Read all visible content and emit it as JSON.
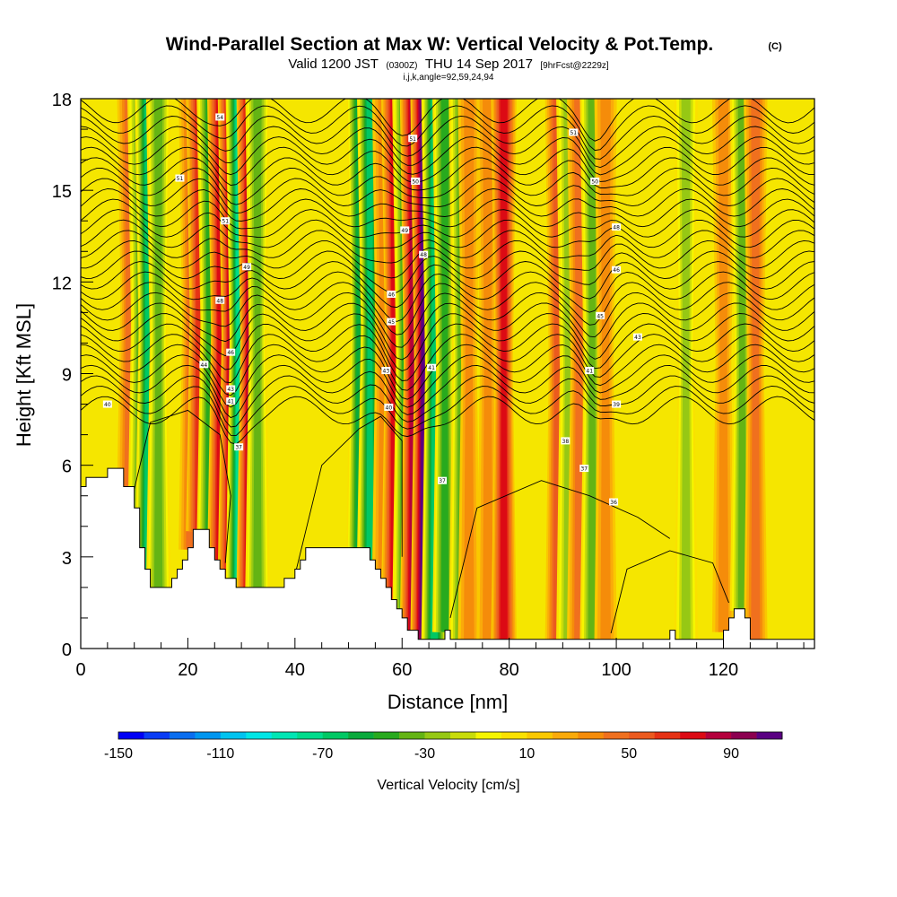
{
  "header": {
    "title": "Wind-Parallel Section at Max W: Vertical Velocity & Pot.Temp.",
    "title_mark": "(C)",
    "valid_prefix": "Valid 1200 JST",
    "valid_zulu": "(0300Z)",
    "valid_date": "THU 14 Sep 2017",
    "forecast": "[9hrFcst@2229z]",
    "ijk": "i,j,k,angle=92,59,24,94"
  },
  "chart_data": {
    "type": "heatmap",
    "xlabel": "Distance [nm]",
    "ylabel": "Height [Kft MSL]",
    "xlim": [
      0,
      137
    ],
    "ylim": [
      0,
      18
    ],
    "x_ticks": [
      "0",
      "20",
      "40",
      "60",
      "80",
      "100",
      "120"
    ],
    "y_ticks": [
      "0",
      "3",
      "6",
      "9",
      "12",
      "15",
      "18"
    ],
    "grid": false,
    "colorbar": {
      "label": "Vertical Velocity [cm/s]",
      "tick_labels": [
        "-150",
        "-110",
        "-70",
        "-30",
        "10",
        "50",
        "90"
      ],
      "range": [
        -150,
        110
      ],
      "step": 10,
      "colors": [
        "#0000f5",
        "#0a3cf5",
        "#0a6ef0",
        "#0096f0",
        "#00c3f0",
        "#00e6e6",
        "#00e6b4",
        "#00dc8c",
        "#00c864",
        "#0aaa3c",
        "#28aa1e",
        "#64b414",
        "#96c814",
        "#c8dc0a",
        "#f5f500",
        "#fae100",
        "#fac800",
        "#faaa0a",
        "#f58c0a",
        "#f0701e",
        "#eb5a1e",
        "#e63214",
        "#dc0a14",
        "#b4003c",
        "#8c0050",
        "#5a0082"
      ]
    },
    "updraft_columns": [
      {
        "x": 9,
        "peak": 55
      },
      {
        "x": 11,
        "peak": -45
      },
      {
        "x": 12.5,
        "peak": -70
      },
      {
        "x": 14.5,
        "peak": -40
      },
      {
        "x": 20.5,
        "peak": 50
      },
      {
        "x": 22,
        "peak": 70
      },
      {
        "x": 24,
        "peak": -50
      },
      {
        "x": 26,
        "peak": 85
      },
      {
        "x": 28,
        "peak": 95
      },
      {
        "x": 29.5,
        "peak": -80
      },
      {
        "x": 31.5,
        "peak": 90
      },
      {
        "x": 33,
        "peak": -40
      },
      {
        "x": 52,
        "peak": -60
      },
      {
        "x": 54,
        "peak": -70
      },
      {
        "x": 56.5,
        "peak": 45
      },
      {
        "x": 58.5,
        "peak": 85
      },
      {
        "x": 60.5,
        "peak": -50
      },
      {
        "x": 62,
        "peak": 95
      },
      {
        "x": 64,
        "peak": 110
      },
      {
        "x": 66,
        "peak": -75
      },
      {
        "x": 68,
        "peak": -50
      },
      {
        "x": 71,
        "peak": -40
      },
      {
        "x": 72.5,
        "peak": 40
      },
      {
        "x": 76,
        "peak": 40
      },
      {
        "x": 79,
        "peak": 80
      },
      {
        "x": 89,
        "peak": 60
      },
      {
        "x": 91,
        "peak": -35
      },
      {
        "x": 93,
        "peak": 50
      },
      {
        "x": 95.5,
        "peak": -45
      },
      {
        "x": 98,
        "peak": 40
      },
      {
        "x": 113,
        "peak": -30
      },
      {
        "x": 120,
        "peak": 40
      },
      {
        "x": 123.5,
        "peak": -45
      },
      {
        "x": 126,
        "peak": 50
      }
    ],
    "terrain": [
      [
        0,
        5.3
      ],
      [
        1,
        5.3
      ],
      [
        1,
        5.6
      ],
      [
        5,
        5.6
      ],
      [
        5,
        5.9
      ],
      [
        8,
        5.9
      ],
      [
        8,
        5.3
      ],
      [
        10,
        5.3
      ],
      [
        10,
        4.6
      ],
      [
        11,
        4.6
      ],
      [
        11,
        3.3
      ],
      [
        12,
        3.3
      ],
      [
        12,
        2.6
      ],
      [
        13,
        2.6
      ],
      [
        13,
        2.0
      ],
      [
        17,
        2.0
      ],
      [
        17,
        2.3
      ],
      [
        18,
        2.3
      ],
      [
        18,
        2.6
      ],
      [
        19,
        2.6
      ],
      [
        19,
        2.9
      ],
      [
        20,
        2.9
      ],
      [
        20,
        3.3
      ],
      [
        21,
        3.3
      ],
      [
        21,
        3.9
      ],
      [
        24,
        3.9
      ],
      [
        24,
        3.3
      ],
      [
        25,
        3.3
      ],
      [
        25,
        2.9
      ],
      [
        26,
        2.9
      ],
      [
        26,
        2.6
      ],
      [
        27,
        2.6
      ],
      [
        27,
        2.3
      ],
      [
        29,
        2.3
      ],
      [
        29,
        2.0
      ],
      [
        38,
        2.0
      ],
      [
        38,
        2.3
      ],
      [
        40,
        2.3
      ],
      [
        40,
        2.6
      ],
      [
        41,
        2.6
      ],
      [
        41,
        2.9
      ],
      [
        42,
        2.9
      ],
      [
        42,
        3.3
      ],
      [
        54,
        3.3
      ],
      [
        54,
        2.9
      ],
      [
        55,
        2.9
      ],
      [
        55,
        2.6
      ],
      [
        56,
        2.6
      ],
      [
        56,
        2.3
      ],
      [
        57,
        2.3
      ],
      [
        57,
        2.0
      ],
      [
        58,
        2.0
      ],
      [
        58,
        1.6
      ],
      [
        59,
        1.6
      ],
      [
        59,
        1.3
      ],
      [
        60,
        1.3
      ],
      [
        60,
        1.0
      ],
      [
        61,
        1.0
      ],
      [
        61,
        0.6
      ],
      [
        63,
        0.6
      ],
      [
        63,
        0.3
      ],
      [
        68,
        0.3
      ],
      [
        68,
        0.6
      ],
      [
        69,
        0.6
      ],
      [
        69,
        0.3
      ],
      [
        110,
        0.3
      ],
      [
        110,
        0.6
      ],
      [
        111,
        0.6
      ],
      [
        111,
        0.3
      ],
      [
        120,
        0.3
      ],
      [
        120,
        0.6
      ],
      [
        121,
        0.6
      ],
      [
        121,
        1.0
      ],
      [
        122,
        1.0
      ],
      [
        122,
        1.3
      ],
      [
        124,
        1.3
      ],
      [
        124,
        1.0
      ],
      [
        125,
        1.0
      ],
      [
        125,
        0.3
      ],
      [
        137,
        0.3
      ]
    ],
    "theta_labels": [
      {
        "text": "54",
        "x": 26,
        "y": 17.4
      },
      {
        "text": "51",
        "x": 18.5,
        "y": 15.4
      },
      {
        "text": "51",
        "x": 27,
        "y": 14.0
      },
      {
        "text": "49",
        "x": 31,
        "y": 12.5
      },
      {
        "text": "48",
        "x": 26,
        "y": 11.4
      },
      {
        "text": "46",
        "x": 28,
        "y": 9.7
      },
      {
        "text": "44",
        "x": 23,
        "y": 9.3
      },
      {
        "text": "43",
        "x": 28,
        "y": 8.5
      },
      {
        "text": "41",
        "x": 28,
        "y": 8.1
      },
      {
        "text": "40",
        "x": 5,
        "y": 8.0
      },
      {
        "text": "37",
        "x": 29.5,
        "y": 6.6
      },
      {
        "text": "51",
        "x": 62,
        "y": 16.7
      },
      {
        "text": "50",
        "x": 62.5,
        "y": 15.3
      },
      {
        "text": "49",
        "x": 60.5,
        "y": 13.7
      },
      {
        "text": "48",
        "x": 64,
        "y": 12.9
      },
      {
        "text": "46",
        "x": 58,
        "y": 11.6
      },
      {
        "text": "45",
        "x": 58,
        "y": 10.7
      },
      {
        "text": "43",
        "x": 57,
        "y": 9.1
      },
      {
        "text": "41",
        "x": 65.5,
        "y": 9.2
      },
      {
        "text": "40",
        "x": 57.5,
        "y": 7.9
      },
      {
        "text": "37",
        "x": 67.5,
        "y": 5.5
      },
      {
        "text": "51",
        "x": 92,
        "y": 16.9
      },
      {
        "text": "50",
        "x": 96,
        "y": 15.3
      },
      {
        "text": "48",
        "x": 100,
        "y": 13.8
      },
      {
        "text": "46",
        "x": 100,
        "y": 12.4
      },
      {
        "text": "45",
        "x": 97,
        "y": 10.9
      },
      {
        "text": "43",
        "x": 104,
        "y": 10.2
      },
      {
        "text": "41",
        "x": 95,
        "y": 9.1
      },
      {
        "text": "39",
        "x": 100,
        "y": 8.0
      },
      {
        "text": "38",
        "x": 90.5,
        "y": 6.8
      },
      {
        "text": "37",
        "x": 94,
        "y": 5.9
      },
      {
        "text": "36",
        "x": 99.5,
        "y": 4.8
      }
    ]
  }
}
